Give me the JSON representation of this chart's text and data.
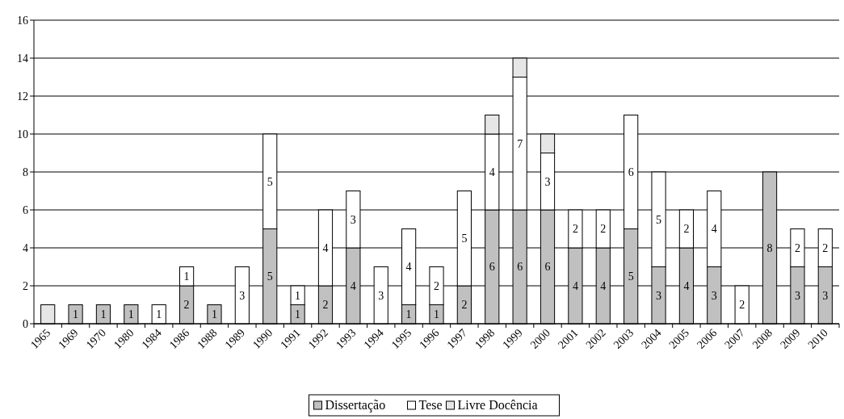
{
  "chart_data": {
    "type": "bar",
    "stacked": true,
    "categories": [
      "1965",
      "1969",
      "1970",
      "1980",
      "1984",
      "1986",
      "1988",
      "1989",
      "1990",
      "1991",
      "1992",
      "1993",
      "1994",
      "1995",
      "1996",
      "1997",
      "1998",
      "1999",
      "2000",
      "2001",
      "2002",
      "2003",
      "2004",
      "2005",
      "2006",
      "2007",
      "2008",
      "2009",
      "2010"
    ],
    "series": [
      {
        "name": "Dissertação",
        "color": "#c0c0c0",
        "values": [
          0,
          1,
          1,
          1,
          0,
          2,
          1,
          0,
          5,
          1,
          2,
          4,
          0,
          1,
          1,
          2,
          6,
          6,
          6,
          4,
          4,
          5,
          3,
          4,
          3,
          0,
          8,
          3,
          3
        ],
        "value_labels": [
          null,
          "1",
          "1",
          "1",
          null,
          "2",
          "1",
          null,
          "5",
          "1",
          "2",
          "4",
          null,
          "1",
          "1",
          "2",
          "6",
          "6",
          "6",
          "4",
          "4",
          "5",
          "3",
          "4",
          "3",
          null,
          "8",
          "3",
          "3"
        ]
      },
      {
        "name": "Tese",
        "color": "#ffffff",
        "values": [
          0,
          0,
          0,
          0,
          1,
          1,
          0,
          3,
          5,
          1,
          4,
          3,
          3,
          4,
          2,
          5,
          4,
          7,
          3,
          2,
          2,
          6,
          5,
          2,
          4,
          2,
          0,
          2,
          2
        ],
        "value_labels": [
          null,
          null,
          null,
          null,
          "1",
          "1",
          null,
          "3",
          "5",
          "1",
          "4",
          "3",
          "3",
          "4",
          "2",
          "5",
          "4",
          "7",
          "3",
          "2",
          "2",
          "6",
          "5",
          "2",
          "4",
          "2",
          null,
          "2",
          "2"
        ]
      },
      {
        "name": "Livre Docência",
        "color": "#e6e6e6",
        "values": [
          1,
          0,
          0,
          0,
          0,
          0,
          0,
          0,
          0,
          0,
          0,
          0,
          0,
          0,
          0,
          0,
          1,
          1,
          1,
          0,
          0,
          0,
          0,
          0,
          0,
          0,
          0,
          0,
          0
        ]
      }
    ],
    "ylim": [
      0,
      16
    ],
    "yticks": [
      0,
      2,
      4,
      6,
      8,
      10,
      12,
      14,
      16
    ],
    "grid": "y",
    "legend": "bottom"
  }
}
